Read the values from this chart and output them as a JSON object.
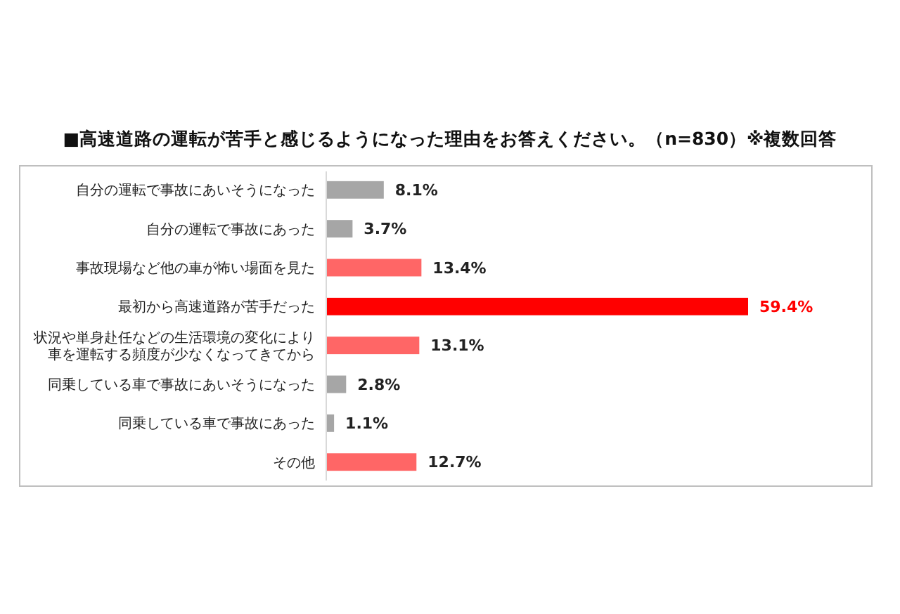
{
  "chart_data": {
    "type": "bar",
    "orientation": "horizontal",
    "title": "■高速道路の運転が苦手と感じるようになった理由をお答えください。（n=830）※複数回答",
    "categories": [
      "自分の運転で事故にあいそうになった",
      "自分の運転で事故にあった",
      "事故現場など他の車が怖い場面を見た",
      "最初から高速道路が苦手だった",
      "状況や単身赴任などの生活環境の変化により車を運転する頻度が少なくなってきてから",
      "同乗している車で事故にあいそうになった",
      "同乗している車で事故にあった",
      "その他"
    ],
    "values": [
      8.1,
      3.7,
      13.4,
      59.4,
      13.1,
      2.8,
      1.1,
      12.7
    ],
    "colors": [
      "#a6a6a6",
      "#a6a6a6",
      "#ff6666",
      "#ff0000",
      "#ff6666",
      "#a6a6a6",
      "#a6a6a6",
      "#ff6666"
    ],
    "value_labels": [
      "8.1%",
      "3.7%",
      "13.4%",
      "59.4%",
      "13.1%",
      "2.8%",
      "1.1%",
      "12.7%"
    ]
  }
}
